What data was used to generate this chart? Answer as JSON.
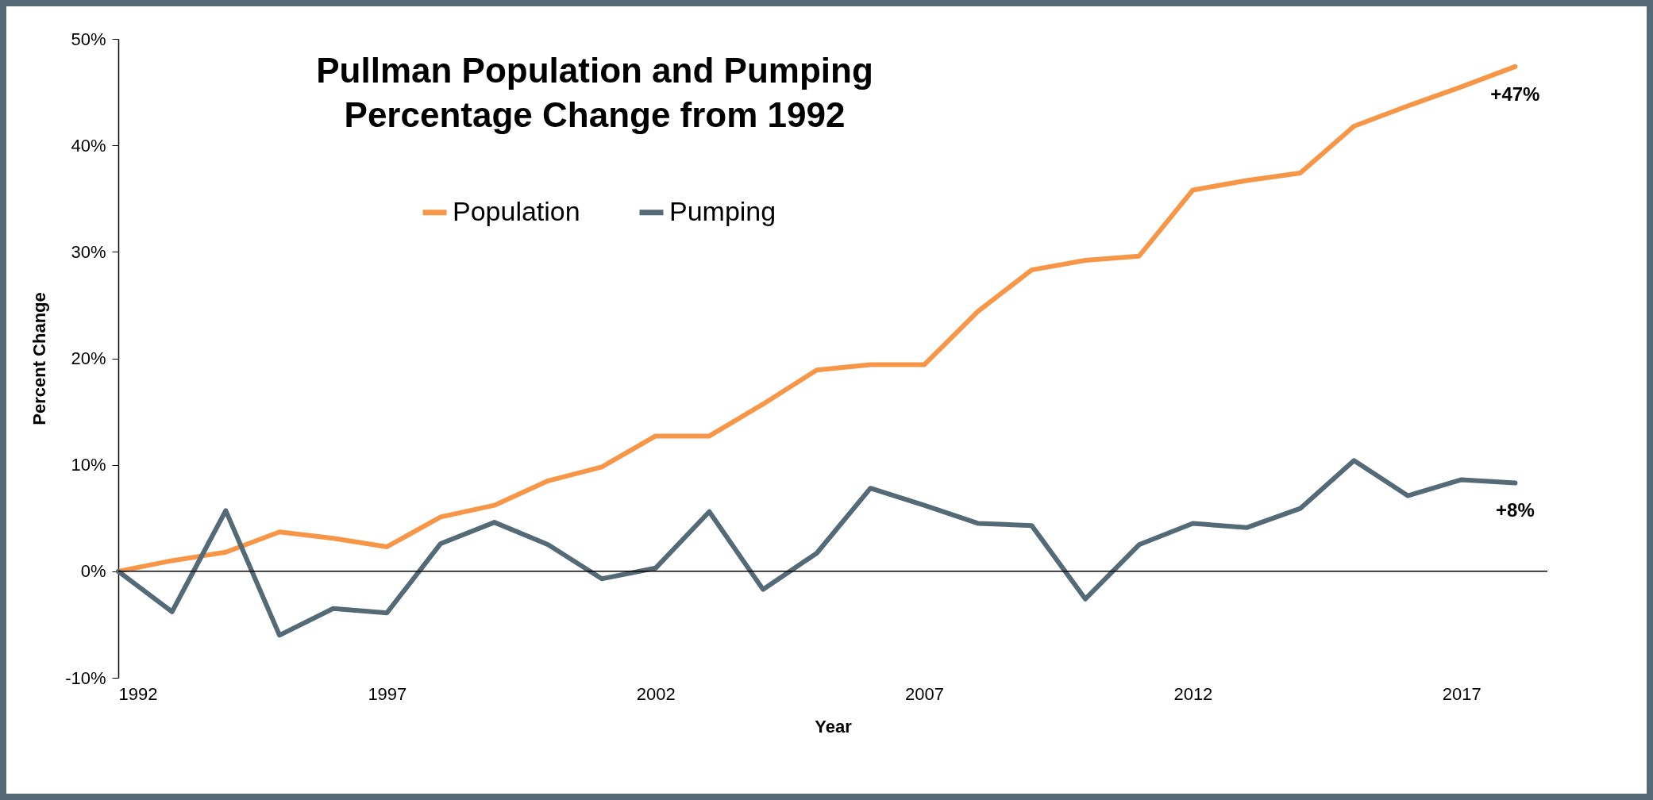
{
  "chart_data": {
    "type": "line",
    "title": "Pullman Population and Pumping Percentage Change from 1992",
    "xlabel": "Year",
    "ylabel": "Percent Change",
    "x": [
      1992,
      1993,
      1994,
      1995,
      1996,
      1997,
      1998,
      1999,
      2000,
      2001,
      2002,
      2003,
      2004,
      2005,
      2006,
      2007,
      2008,
      2009,
      2010,
      2011,
      2012,
      2013,
      2014,
      2015,
      2016,
      2017,
      2018
    ],
    "series": [
      {
        "name": "Population",
        "color": "#f79646",
        "values": [
          0,
          1,
          1.8,
          3.7,
          3.1,
          2.3,
          5.1,
          6.2,
          8.5,
          9.8,
          12.7,
          12.7,
          15.7,
          18.9,
          19.4,
          19.4,
          24.4,
          28.3,
          29.2,
          29.6,
          35.8,
          36.7,
          37.4,
          41.8,
          43.7,
          45.5,
          47.4
        ]
      },
      {
        "name": "Pumping",
        "color": "#546a76",
        "values": [
          0,
          -3.8,
          5.7,
          -6,
          -3.5,
          -3.9,
          2.6,
          4.6,
          2.5,
          -0.7,
          0.3,
          5.6,
          -1.7,
          1.7,
          7.8,
          6.2,
          4.5,
          4.3,
          -2.6,
          2.5,
          4.5,
          4.1,
          5.9,
          10.4,
          7.1,
          8.6,
          8.3
        ]
      }
    ],
    "xlim": [
      1992,
      2018.6
    ],
    "xticks": [
      1992,
      1997,
      2002,
      2007,
      2012,
      2017
    ],
    "ylim": [
      -10,
      50
    ],
    "yticks": [
      {
        "value": -10,
        "label": "-10%"
      },
      {
        "value": 0,
        "label": "0%"
      },
      {
        "value": 10,
        "label": "10%"
      },
      {
        "value": 20,
        "label": "20%"
      },
      {
        "value": 30,
        "label": "30%"
      },
      {
        "value": 40,
        "label": "40%"
      },
      {
        "value": 50,
        "label": "50%"
      }
    ],
    "ref_lines": [
      {
        "axis": "y",
        "value": 0,
        "color": "#000000"
      }
    ],
    "annotations": [
      {
        "text": "+47%",
        "x": 2018,
        "y": 47.4
      },
      {
        "text": "+8%",
        "x": 2018,
        "y": 8.3
      }
    ],
    "legend": "top left",
    "grid": false,
    "line_style": "solid",
    "marker": "none"
  }
}
